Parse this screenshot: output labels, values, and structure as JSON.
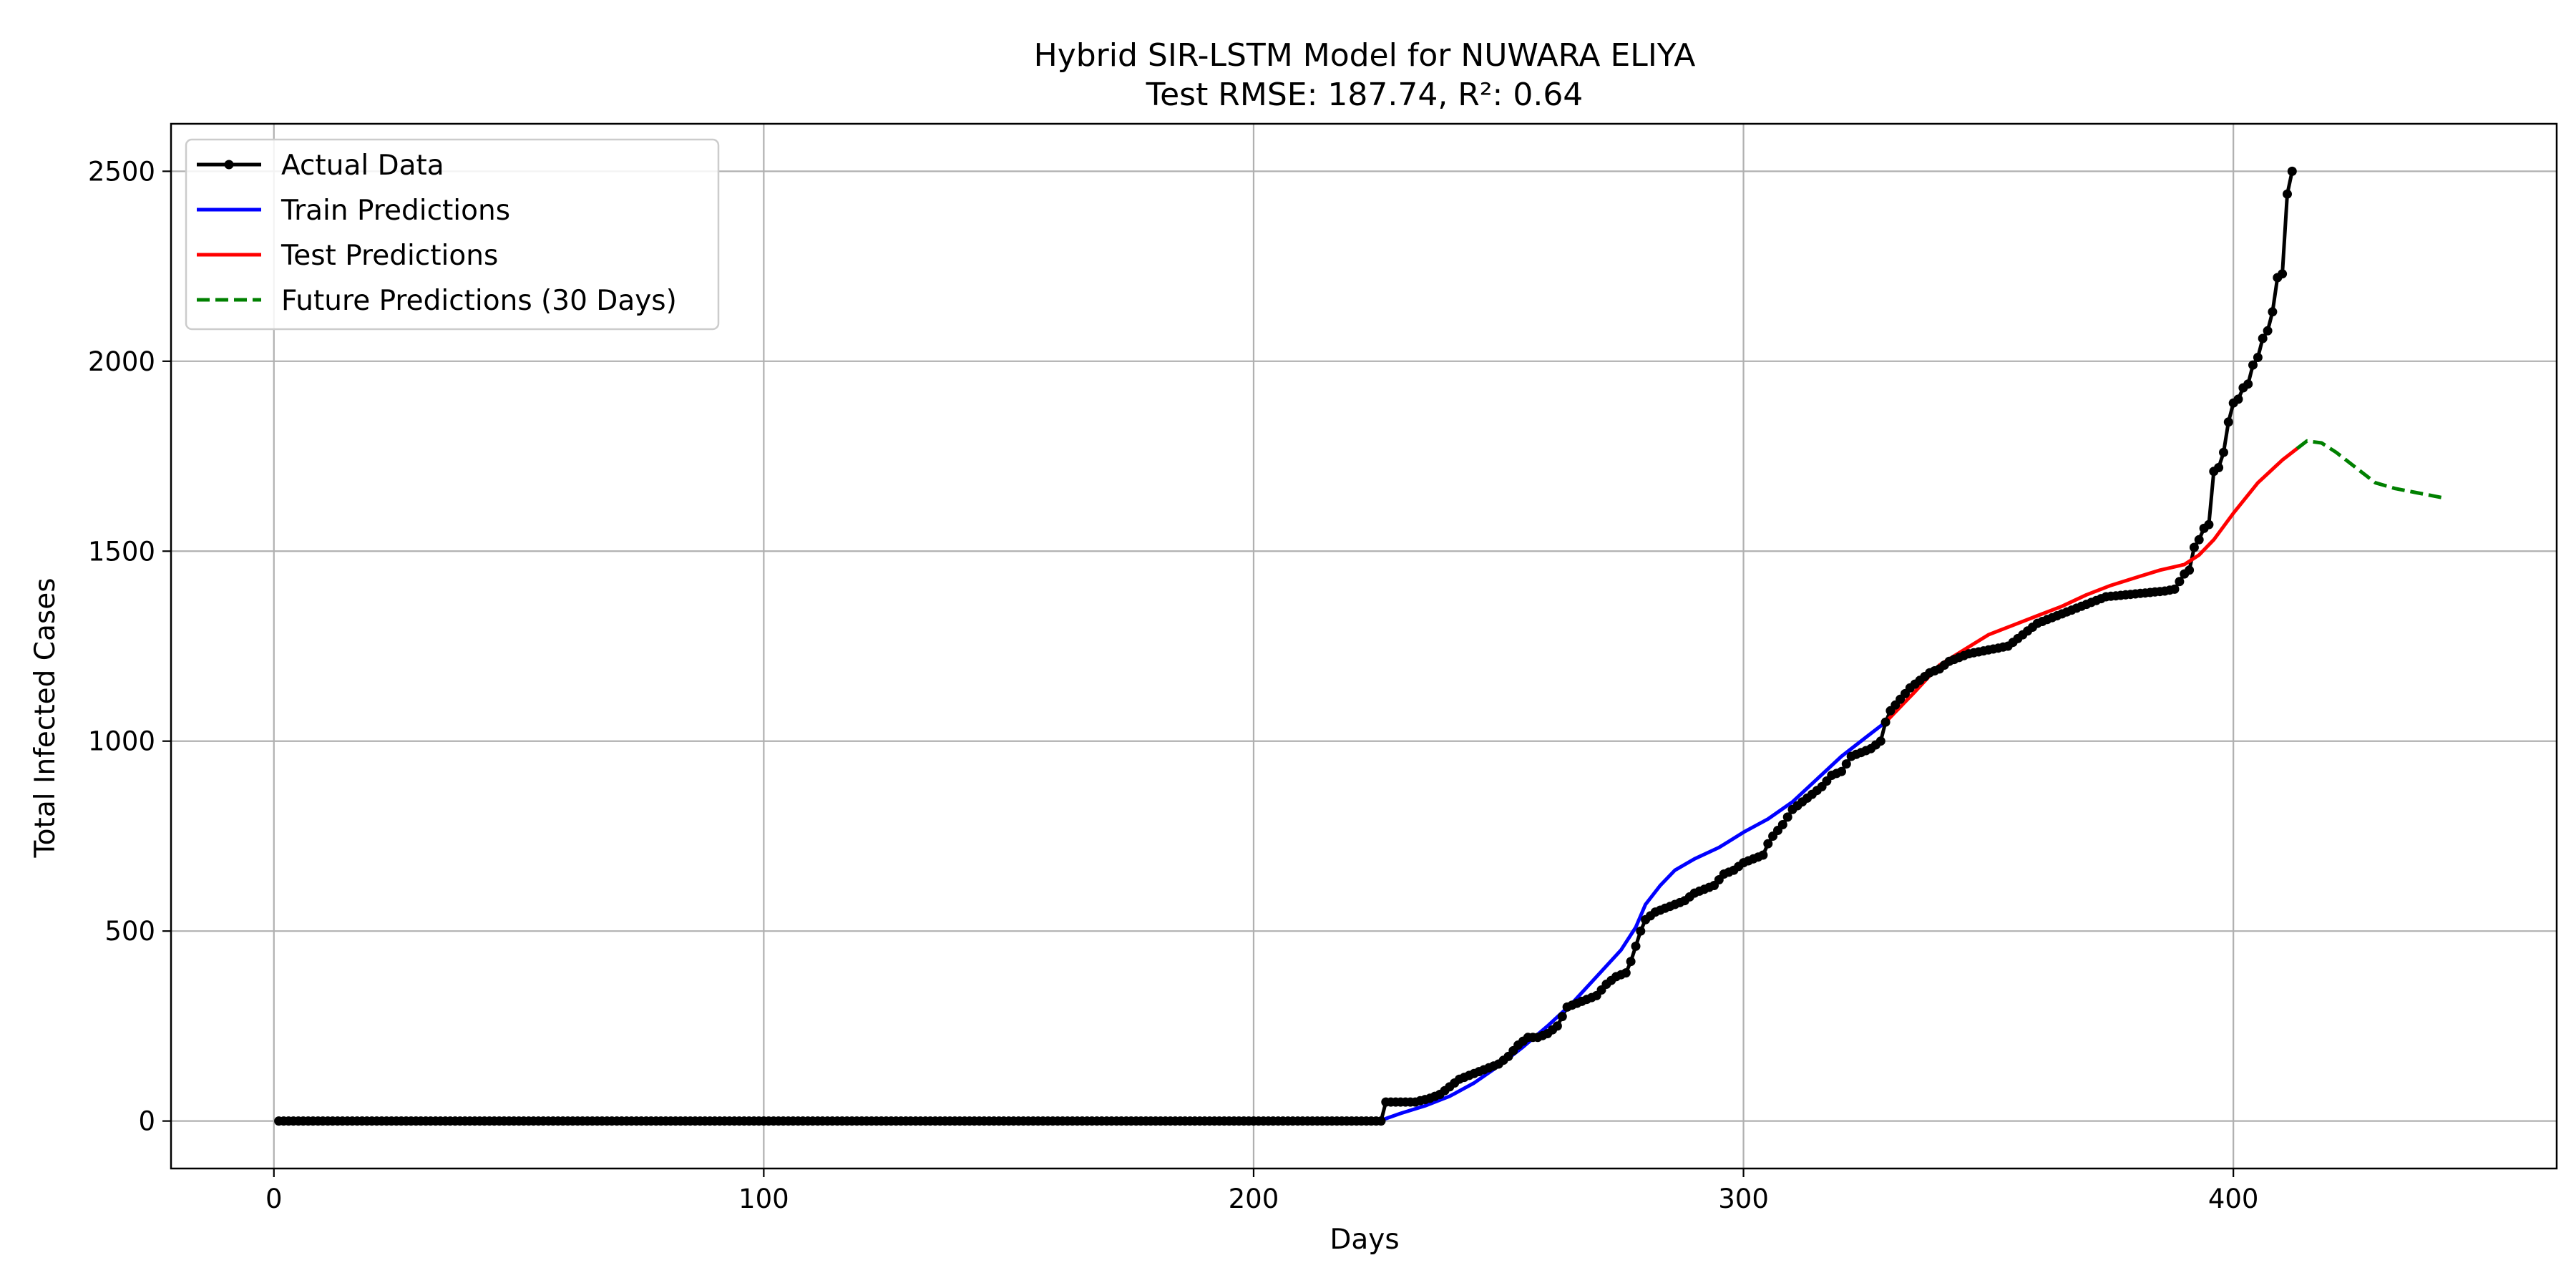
{
  "chart_data": {
    "type": "line",
    "title": "Hybrid SIR-LSTM Model for NUWARA ELIYA",
    "subtitle": "Test RMSE: 187.74, R²: 0.64",
    "xlabel": "Days",
    "ylabel": "Total Infected Cases",
    "xlim": [
      -21,
      466
    ],
    "ylim": [
      -125,
      2625
    ],
    "xticks": [
      0,
      100,
      200,
      300,
      400
    ],
    "yticks": [
      0,
      500,
      1000,
      1500,
      2000,
      2500
    ],
    "grid": true,
    "legend_position": "top-left",
    "series": [
      {
        "name": "Actual Data",
        "color": "#000000",
        "style": "solid-with-markers",
        "points": [
          [
            1,
            0
          ],
          [
            15,
            0
          ],
          [
            100,
            0
          ],
          [
            200,
            0
          ],
          [
            226,
            0
          ],
          [
            227,
            50
          ],
          [
            230,
            50
          ],
          [
            233,
            50
          ],
          [
            236,
            60
          ],
          [
            238,
            70
          ],
          [
            240,
            90
          ],
          [
            242,
            110
          ],
          [
            244,
            120
          ],
          [
            246,
            130
          ],
          [
            248,
            140
          ],
          [
            250,
            150
          ],
          [
            252,
            170
          ],
          [
            254,
            200
          ],
          [
            256,
            220
          ],
          [
            258,
            220
          ],
          [
            260,
            230
          ],
          [
            262,
            250
          ],
          [
            264,
            300
          ],
          [
            266,
            310
          ],
          [
            268,
            320
          ],
          [
            270,
            330
          ],
          [
            272,
            360
          ],
          [
            274,
            380
          ],
          [
            276,
            390
          ],
          [
            277,
            420
          ],
          [
            278,
            460
          ],
          [
            279,
            500
          ],
          [
            280,
            530
          ],
          [
            282,
            550
          ],
          [
            284,
            560
          ],
          [
            286,
            570
          ],
          [
            288,
            580
          ],
          [
            290,
            600
          ],
          [
            292,
            610
          ],
          [
            294,
            620
          ],
          [
            296,
            650
          ],
          [
            298,
            660
          ],
          [
            300,
            680
          ],
          [
            302,
            690
          ],
          [
            304,
            700
          ],
          [
            305,
            730
          ],
          [
            306,
            750
          ],
          [
            308,
            780
          ],
          [
            310,
            820
          ],
          [
            312,
            840
          ],
          [
            314,
            860
          ],
          [
            316,
            880
          ],
          [
            318,
            910
          ],
          [
            320,
            920
          ],
          [
            322,
            960
          ],
          [
            324,
            970
          ],
          [
            326,
            980
          ],
          [
            328,
            1000
          ],
          [
            329,
            1050
          ],
          [
            330,
            1080
          ],
          [
            332,
            1110
          ],
          [
            334,
            1140
          ],
          [
            336,
            1160
          ],
          [
            338,
            1180
          ],
          [
            340,
            1190
          ],
          [
            342,
            1210
          ],
          [
            344,
            1220
          ],
          [
            346,
            1230
          ],
          [
            350,
            1240
          ],
          [
            354,
            1250
          ],
          [
            356,
            1270
          ],
          [
            358,
            1290
          ],
          [
            360,
            1310
          ],
          [
            362,
            1320
          ],
          [
            364,
            1330
          ],
          [
            366,
            1340
          ],
          [
            368,
            1350
          ],
          [
            370,
            1360
          ],
          [
            372,
            1370
          ],
          [
            374,
            1380
          ],
          [
            378,
            1385
          ],
          [
            382,
            1390
          ],
          [
            386,
            1395
          ],
          [
            388,
            1400
          ],
          [
            389,
            1420
          ],
          [
            390,
            1440
          ],
          [
            391,
            1450
          ],
          [
            392,
            1510
          ],
          [
            393,
            1530
          ],
          [
            394,
            1560
          ],
          [
            395,
            1570
          ],
          [
            396,
            1710
          ],
          [
            397,
            1720
          ],
          [
            398,
            1760
          ],
          [
            399,
            1840
          ],
          [
            400,
            1890
          ],
          [
            401,
            1900
          ],
          [
            402,
            1930
          ],
          [
            403,
            1940
          ],
          [
            404,
            1990
          ],
          [
            405,
            2010
          ],
          [
            406,
            2060
          ],
          [
            407,
            2080
          ],
          [
            408,
            2130
          ],
          [
            409,
            2220
          ],
          [
            410,
            2230
          ],
          [
            411,
            2440
          ],
          [
            412,
            2500
          ]
        ]
      },
      {
        "name": "Train Predictions",
        "color": "#0000ff",
        "style": "solid",
        "points": [
          [
            15,
            0
          ],
          [
            100,
            0
          ],
          [
            200,
            0
          ],
          [
            226,
            2
          ],
          [
            230,
            20
          ],
          [
            235,
            40
          ],
          [
            240,
            65
          ],
          [
            245,
            100
          ],
          [
            250,
            145
          ],
          [
            255,
            195
          ],
          [
            260,
            250
          ],
          [
            265,
            310
          ],
          [
            270,
            380
          ],
          [
            275,
            450
          ],
          [
            278,
            510
          ],
          [
            280,
            570
          ],
          [
            283,
            620
          ],
          [
            286,
            660
          ],
          [
            290,
            690
          ],
          [
            295,
            720
          ],
          [
            300,
            760
          ],
          [
            305,
            795
          ],
          [
            310,
            840
          ],
          [
            315,
            900
          ],
          [
            320,
            960
          ],
          [
            325,
            1010
          ],
          [
            329,
            1050
          ]
        ]
      },
      {
        "name": "Test Predictions",
        "color": "#ff0000",
        "style": "solid",
        "points": [
          [
            329,
            1050
          ],
          [
            335,
            1130
          ],
          [
            340,
            1200
          ],
          [
            345,
            1240
          ],
          [
            350,
            1280
          ],
          [
            355,
            1305
          ],
          [
            360,
            1330
          ],
          [
            365,
            1355
          ],
          [
            370,
            1385
          ],
          [
            375,
            1410
          ],
          [
            380,
            1430
          ],
          [
            385,
            1450
          ],
          [
            390,
            1465
          ],
          [
            393,
            1490
          ],
          [
            396,
            1530
          ],
          [
            400,
            1600
          ],
          [
            405,
            1680
          ],
          [
            410,
            1740
          ],
          [
            413,
            1770
          ]
        ]
      },
      {
        "name": "Future Predictions (30 Days)",
        "color": "#008000",
        "style": "dashed",
        "points": [
          [
            413,
            1770
          ],
          [
            415,
            1790
          ],
          [
            418,
            1785
          ],
          [
            421,
            1760
          ],
          [
            425,
            1720
          ],
          [
            429,
            1680
          ],
          [
            433,
            1665
          ],
          [
            437,
            1655
          ],
          [
            441,
            1645
          ],
          [
            443,
            1640
          ]
        ]
      }
    ]
  }
}
